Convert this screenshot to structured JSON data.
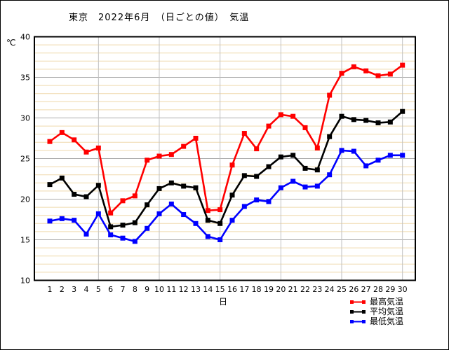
{
  "title": "東京　2022年6月　（日ごとの値）　気温",
  "y_axis": {
    "unit": "℃",
    "ticks": [
      40,
      35,
      30,
      25,
      20,
      15,
      10
    ],
    "min": 10,
    "max": 40
  },
  "x_axis": {
    "label": "日"
  },
  "legend": [
    {
      "label": "最高気温",
      "color": "#ff0000"
    },
    {
      "label": "平均気温",
      "color": "#000000"
    },
    {
      "label": "最低気温",
      "color": "#0000ff"
    }
  ],
  "colors": {
    "max_line": "#ff0000",
    "avg_line": "#000000",
    "min_line": "#0000ff",
    "grid_minor": "#efd9ac",
    "grid_major": "#aaaaaa",
    "grid_vertical": "#c0c0c0",
    "plot_border": "#000000"
  },
  "chart_data": {
    "type": "line",
    "title": "東京　2022年6月　（日ごとの値）　気温",
    "xlabel": "日",
    "ylabel": "℃",
    "ylim": [
      10,
      40
    ],
    "grid": {
      "horizontal_minor_step": 1,
      "horizontal_major_step": 5,
      "vertical_step_days": 5
    },
    "legend_position": "bottom-right",
    "x": [
      1,
      2,
      3,
      4,
      5,
      6,
      7,
      8,
      9,
      10,
      11,
      12,
      13,
      14,
      15,
      16,
      17,
      18,
      19,
      20,
      21,
      22,
      23,
      24,
      25,
      26,
      27,
      28,
      29,
      30
    ],
    "series": [
      {
        "name": "最高気温",
        "color": "#ff0000",
        "values": [
          27.1,
          28.2,
          27.3,
          25.8,
          26.3,
          18.3,
          19.8,
          20.4,
          24.8,
          25.3,
          25.5,
          26.5,
          27.5,
          18.6,
          18.7,
          24.2,
          28.1,
          26.2,
          29.0,
          30.4,
          30.2,
          28.8,
          26.3,
          32.8,
          35.5,
          36.3,
          35.8,
          35.2,
          35.4,
          36.5
        ]
      },
      {
        "name": "平均気温",
        "color": "#000000",
        "values": [
          21.8,
          22.6,
          20.6,
          20.3,
          21.7,
          16.6,
          16.8,
          17.1,
          19.3,
          21.3,
          22.0,
          21.6,
          21.4,
          17.4,
          17.0,
          20.5,
          22.9,
          22.8,
          24.0,
          25.2,
          25.4,
          23.8,
          23.6,
          27.7,
          30.2,
          29.8,
          29.7,
          29.4,
          29.5,
          30.8
        ]
      },
      {
        "name": "最低気温",
        "color": "#0000ff",
        "values": [
          17.3,
          17.6,
          17.4,
          15.7,
          18.2,
          15.6,
          15.2,
          14.8,
          16.4,
          18.2,
          19.4,
          18.1,
          17.0,
          15.4,
          15.0,
          17.4,
          19.1,
          19.9,
          19.7,
          21.4,
          22.2,
          21.5,
          21.6,
          23.0,
          26.0,
          25.9,
          24.1,
          24.8,
          25.4,
          25.4
        ]
      }
    ]
  }
}
